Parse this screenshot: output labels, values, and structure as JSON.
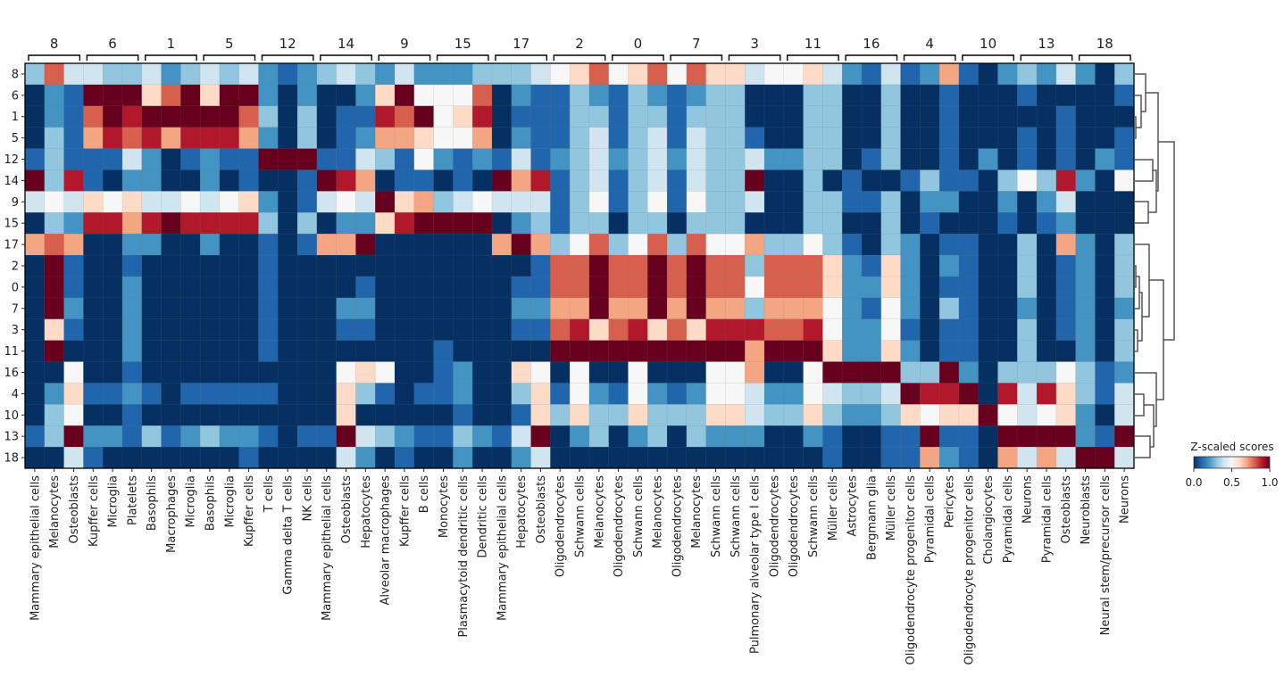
{
  "chart_data": {
    "type": "heatmap",
    "colormap": "RdBu_r",
    "value_range": [
      0,
      1
    ],
    "row_labels": [
      "8",
      "6",
      "1",
      "5",
      "12",
      "14",
      "9",
      "15",
      "17",
      "2",
      "0",
      "7",
      "3",
      "11",
      "16",
      "4",
      "10",
      "13",
      "18"
    ],
    "groups": [
      {
        "label": "8",
        "columns": [
          "Mammary epithelial cells",
          "Melanocytes",
          "Osteoblasts"
        ]
      },
      {
        "label": "6",
        "columns": [
          "Kupffer cells",
          "Microglia",
          "Platelets"
        ]
      },
      {
        "label": "1",
        "columns": [
          "Basophils",
          "Macrophages",
          "Microglia"
        ]
      },
      {
        "label": "5",
        "columns": [
          "Basophils",
          "Microglia",
          "Kupffer cells"
        ]
      },
      {
        "label": "12",
        "columns": [
          "T cells",
          "Gamma delta T cells",
          "NK cells"
        ]
      },
      {
        "label": "14",
        "columns": [
          "Mammary epithelial cells",
          "Osteoblasts",
          "Hepatocytes"
        ]
      },
      {
        "label": "9",
        "columns": [
          "Alveolar macrophages",
          "Kupffer cells",
          "B cells"
        ]
      },
      {
        "label": "15",
        "columns": [
          "Monocytes",
          "Plasmacytoid dendritic cells",
          "Dendritic cells"
        ]
      },
      {
        "label": "17",
        "columns": [
          "Mammary epithelial cells",
          "Hepatocytes",
          "Osteoblasts"
        ]
      },
      {
        "label": "2",
        "columns": [
          "Oligodendrocytes",
          "Schwann cells",
          "Melanocytes"
        ]
      },
      {
        "label": "0",
        "columns": [
          "Oligodendrocytes",
          "Schwann cells",
          "Melanocytes"
        ]
      },
      {
        "label": "7",
        "columns": [
          "Oligodendrocytes",
          "Melanocytes",
          "Schwann cells"
        ]
      },
      {
        "label": "3",
        "columns": [
          "Schwann cells",
          "Pulmonary alveolar type I cells",
          "Oligodendrocytes"
        ]
      },
      {
        "label": "11",
        "columns": [
          "Oligodendrocytes",
          "Schwann cells",
          "Müller cells"
        ]
      },
      {
        "label": "16",
        "columns": [
          "Astrocytes",
          "Bergmann glia",
          "Müller cells"
        ]
      },
      {
        "label": "4",
        "columns": [
          "Oligodendrocyte progenitor cells",
          "Pyramidal cells",
          "Pericytes"
        ]
      },
      {
        "label": "10",
        "columns": [
          "Oligodendrocyte progenitor cells",
          "Cholangiocytes",
          "Pyramidal cells"
        ]
      },
      {
        "label": "13",
        "columns": [
          "Neurons",
          "Pyramidal cells",
          "Osteoblasts"
        ]
      },
      {
        "label": "18",
        "columns": [
          "Neuroblasts",
          "Neural stem/precursor cells",
          "Neurons"
        ]
      }
    ],
    "values": [
      [
        0.3,
        0.8,
        0.4,
        0.4,
        0.3,
        0.3,
        0.4,
        0.2,
        0.3,
        0.4,
        0.3,
        0.4,
        0.2,
        0.1,
        0.2,
        0.3,
        0.4,
        0.3,
        0.2,
        0.4,
        0.2,
        0.2,
        0.2,
        0.3,
        0.3,
        0.3,
        0.4,
        0.5,
        0.6,
        0.8,
        0.5,
        0.6,
        0.8,
        0.5,
        0.8,
        0.6,
        0.6,
        0.4,
        0.5,
        0.5,
        0.6,
        0.4,
        0.2,
        0.1,
        0.4,
        0.1,
        0.2,
        0.7,
        0.1,
        0.0,
        0.2,
        0.3,
        0.2,
        0.4,
        0.2,
        0.0,
        0.3
      ],
      [
        0.0,
        0.2,
        0.1,
        1.0,
        1.0,
        1.0,
        0.6,
        0.8,
        1.0,
        0.6,
        1.0,
        1.0,
        0.2,
        0.0,
        0.2,
        0.0,
        0.0,
        0.2,
        0.6,
        1.0,
        0.5,
        0.5,
        0.5,
        0.8,
        0.0,
        0.2,
        0.1,
        0.1,
        0.3,
        0.2,
        0.1,
        0.3,
        0.2,
        0.1,
        0.2,
        0.3,
        0.3,
        0.0,
        0.0,
        0.0,
        0.3,
        0.3,
        0.0,
        0.0,
        0.3,
        0.0,
        0.0,
        0.1,
        0.0,
        0.0,
        0.0,
        0.1,
        0.0,
        0.0,
        0.0,
        0.0,
        0.1
      ],
      [
        0.0,
        0.2,
        0.1,
        0.8,
        1.0,
        0.9,
        1.0,
        1.0,
        1.0,
        1.0,
        1.0,
        0.8,
        0.3,
        0.0,
        0.3,
        0.0,
        0.1,
        0.1,
        0.9,
        0.8,
        1.0,
        0.5,
        0.6,
        0.9,
        0.0,
        0.1,
        0.1,
        0.1,
        0.3,
        0.3,
        0.1,
        0.3,
        0.3,
        0.1,
        0.3,
        0.3,
        0.3,
        0.0,
        0.0,
        0.0,
        0.3,
        0.3,
        0.0,
        0.0,
        0.3,
        0.0,
        0.0,
        0.1,
        0.0,
        0.0,
        0.0,
        0.0,
        0.0,
        0.1,
        0.0,
        0.0,
        0.0
      ],
      [
        0.0,
        0.3,
        0.1,
        0.7,
        0.9,
        0.8,
        0.9,
        0.7,
        0.9,
        0.9,
        0.9,
        0.7,
        0.2,
        0.0,
        0.3,
        0.0,
        0.1,
        0.2,
        0.7,
        0.7,
        0.6,
        0.5,
        0.5,
        0.7,
        0.0,
        0.2,
        0.1,
        0.1,
        0.3,
        0.4,
        0.1,
        0.3,
        0.4,
        0.1,
        0.4,
        0.3,
        0.3,
        0.1,
        0.0,
        0.0,
        0.3,
        0.3,
        0.0,
        0.0,
        0.3,
        0.0,
        0.0,
        0.1,
        0.0,
        0.0,
        0.0,
        0.1,
        0.0,
        0.1,
        0.0,
        0.0,
        0.1
      ],
      [
        0.1,
        0.3,
        0.1,
        0.1,
        0.1,
        0.4,
        0.2,
        0.0,
        0.1,
        0.2,
        0.1,
        0.1,
        1.0,
        1.0,
        1.0,
        0.1,
        0.1,
        0.4,
        0.3,
        0.1,
        0.5,
        0.2,
        0.1,
        0.2,
        0.1,
        0.4,
        0.1,
        0.2,
        0.3,
        0.4,
        0.2,
        0.3,
        0.4,
        0.2,
        0.4,
        0.3,
        0.3,
        0.4,
        0.2,
        0.2,
        0.3,
        0.3,
        0.0,
        0.1,
        0.3,
        0.0,
        0.0,
        0.1,
        0.0,
        0.2,
        0.0,
        0.1,
        0.0,
        0.1,
        0.0,
        0.2,
        0.1
      ],
      [
        1.0,
        0.3,
        0.9,
        0.1,
        0.0,
        0.2,
        0.2,
        0.0,
        0.0,
        0.2,
        0.0,
        0.1,
        0.0,
        0.0,
        0.1,
        1.0,
        0.9,
        0.7,
        0.0,
        0.1,
        0.1,
        0.0,
        0.1,
        0.0,
        1.0,
        0.7,
        0.9,
        0.1,
        0.3,
        0.4,
        0.1,
        0.3,
        0.4,
        0.1,
        0.4,
        0.3,
        0.3,
        1.0,
        0.0,
        0.0,
        0.3,
        0.0,
        0.1,
        0.0,
        0.0,
        0.1,
        0.3,
        0.1,
        0.1,
        0.0,
        0.3,
        0.5,
        0.3,
        0.9,
        0.2,
        0.0,
        0.5
      ],
      [
        0.4,
        0.5,
        0.4,
        0.6,
        0.5,
        0.6,
        0.4,
        0.4,
        0.5,
        0.4,
        0.5,
        0.6,
        0.2,
        0.0,
        0.1,
        0.4,
        0.5,
        0.4,
        1.0,
        0.6,
        0.7,
        0.3,
        0.4,
        0.5,
        0.4,
        0.4,
        0.4,
        0.1,
        0.3,
        0.5,
        0.1,
        0.3,
        0.5,
        0.1,
        0.5,
        0.3,
        0.3,
        0.4,
        0.0,
        0.0,
        0.3,
        0.3,
        0.1,
        0.1,
        0.3,
        0.0,
        0.2,
        0.2,
        0.0,
        0.0,
        0.2,
        0.0,
        0.2,
        0.4,
        0.0,
        0.0,
        0.0
      ],
      [
        0.0,
        0.3,
        0.2,
        0.9,
        0.9,
        0.7,
        0.9,
        1.0,
        0.9,
        0.9,
        0.9,
        0.9,
        0.3,
        0.0,
        0.3,
        0.0,
        0.2,
        0.2,
        0.6,
        0.9,
        1.0,
        1.0,
        1.0,
        1.0,
        0.0,
        0.2,
        0.3,
        0.1,
        0.3,
        0.3,
        0.0,
        0.3,
        0.3,
        0.0,
        0.3,
        0.3,
        0.3,
        0.0,
        0.0,
        0.0,
        0.3,
        0.3,
        0.0,
        0.0,
        0.3,
        0.0,
        0.1,
        0.0,
        0.0,
        0.0,
        0.1,
        0.0,
        0.1,
        0.2,
        0.0,
        0.0,
        0.0
      ],
      [
        0.7,
        0.8,
        0.7,
        0.0,
        0.0,
        0.2,
        0.2,
        0.0,
        0.0,
        0.2,
        0.0,
        0.0,
        0.1,
        0.0,
        0.1,
        0.7,
        0.7,
        1.0,
        0.0,
        0.0,
        0.0,
        0.0,
        0.0,
        0.0,
        0.7,
        1.0,
        0.7,
        0.3,
        0.5,
        0.8,
        0.3,
        0.5,
        0.8,
        0.3,
        0.8,
        0.5,
        0.5,
        0.7,
        0.3,
        0.3,
        0.5,
        0.3,
        0.1,
        0.0,
        0.3,
        0.2,
        0.0,
        0.1,
        0.1,
        0.0,
        0.0,
        0.3,
        0.0,
        0.7,
        0.2,
        0.0,
        0.3
      ],
      [
        0.0,
        1.0,
        0.1,
        0.0,
        0.0,
        0.1,
        0.0,
        0.0,
        0.0,
        0.0,
        0.0,
        0.0,
        0.1,
        0.0,
        0.0,
        0.0,
        0.0,
        0.0,
        0.0,
        0.0,
        0.0,
        0.0,
        0.0,
        0.0,
        0.0,
        0.0,
        0.1,
        0.8,
        0.8,
        1.0,
        0.8,
        0.8,
        1.0,
        0.8,
        1.0,
        0.8,
        0.8,
        0.3,
        0.8,
        0.8,
        0.8,
        0.6,
        0.2,
        0.1,
        0.6,
        0.2,
        0.0,
        0.2,
        0.1,
        0.0,
        0.0,
        0.3,
        0.0,
        0.1,
        0.2,
        0.0,
        0.3
      ],
      [
        0.0,
        1.0,
        0.1,
        0.0,
        0.0,
        0.2,
        0.0,
        0.0,
        0.0,
        0.0,
        0.0,
        0.0,
        0.1,
        0.0,
        0.0,
        0.0,
        0.0,
        0.1,
        0.0,
        0.0,
        0.0,
        0.0,
        0.0,
        0.0,
        0.0,
        0.1,
        0.1,
        0.8,
        0.8,
        1.0,
        0.8,
        0.8,
        1.0,
        0.8,
        1.0,
        0.8,
        0.8,
        0.5,
        0.8,
        0.8,
        0.8,
        0.6,
        0.2,
        0.2,
        0.6,
        0.2,
        0.0,
        0.1,
        0.1,
        0.0,
        0.0,
        0.3,
        0.0,
        0.1,
        0.2,
        0.0,
        0.3
      ],
      [
        0.0,
        1.0,
        0.2,
        0.0,
        0.0,
        0.2,
        0.0,
        0.0,
        0.0,
        0.0,
        0.0,
        0.0,
        0.1,
        0.0,
        0.0,
        0.0,
        0.2,
        0.2,
        0.0,
        0.0,
        0.0,
        0.0,
        0.0,
        0.0,
        0.0,
        0.2,
        0.2,
        0.7,
        0.7,
        1.0,
        0.7,
        0.7,
        1.0,
        0.7,
        1.0,
        0.7,
        0.7,
        0.3,
        0.7,
        0.7,
        0.7,
        0.5,
        0.2,
        0.1,
        0.5,
        0.2,
        0.0,
        0.3,
        0.1,
        0.0,
        0.0,
        0.2,
        0.0,
        0.1,
        0.2,
        0.0,
        0.2
      ],
      [
        0.0,
        0.6,
        0.1,
        0.0,
        0.0,
        0.2,
        0.0,
        0.0,
        0.0,
        0.0,
        0.0,
        0.0,
        0.1,
        0.0,
        0.0,
        0.0,
        0.1,
        0.1,
        0.0,
        0.0,
        0.0,
        0.0,
        0.0,
        0.0,
        0.0,
        0.1,
        0.1,
        0.8,
        0.9,
        0.6,
        0.8,
        0.9,
        0.6,
        0.8,
        0.6,
        0.9,
        0.9,
        0.9,
        0.8,
        0.8,
        0.9,
        0.5,
        0.2,
        0.2,
        0.5,
        0.1,
        0.0,
        0.1,
        0.1,
        0.0,
        0.0,
        0.3,
        0.0,
        0.1,
        0.2,
        0.0,
        0.3
      ],
      [
        0.0,
        1.0,
        0.0,
        0.0,
        0.0,
        0.2,
        0.0,
        0.0,
        0.0,
        0.0,
        0.0,
        0.0,
        0.1,
        0.0,
        0.0,
        0.0,
        0.0,
        0.0,
        0.0,
        0.0,
        0.0,
        0.1,
        0.0,
        0.0,
        0.0,
        0.0,
        0.0,
        1.0,
        1.0,
        1.0,
        1.0,
        1.0,
        1.0,
        1.0,
        1.0,
        1.0,
        1.0,
        0.7,
        1.0,
        1.0,
        1.0,
        0.6,
        0.2,
        0.2,
        0.6,
        0.2,
        0.0,
        0.1,
        0.1,
        0.0,
        0.0,
        0.3,
        0.0,
        0.0,
        0.2,
        0.0,
        0.3
      ],
      [
        0.0,
        0.0,
        0.5,
        0.0,
        0.0,
        0.1,
        0.0,
        0.0,
        0.0,
        0.0,
        0.0,
        0.0,
        0.0,
        0.0,
        0.0,
        0.0,
        0.5,
        0.6,
        0.5,
        0.0,
        0.0,
        0.1,
        0.2,
        0.0,
        0.0,
        0.6,
        0.5,
        0.0,
        0.5,
        0.0,
        0.0,
        0.5,
        0.0,
        0.0,
        0.0,
        0.5,
        0.5,
        0.7,
        0.0,
        0.0,
        0.5,
        1.0,
        1.0,
        1.0,
        1.0,
        0.3,
        0.3,
        1.0,
        0.2,
        0.0,
        0.3,
        0.3,
        0.3,
        0.5,
        0.3,
        0.1,
        0.2
      ],
      [
        0.0,
        0.2,
        0.6,
        0.1,
        0.1,
        0.2,
        0.1,
        0.0,
        0.1,
        0.1,
        0.1,
        0.1,
        0.1,
        0.0,
        0.0,
        0.0,
        0.6,
        0.3,
        0.1,
        0.0,
        0.1,
        0.1,
        0.2,
        0.0,
        0.0,
        0.3,
        0.6,
        0.1,
        0.5,
        0.2,
        0.1,
        0.5,
        0.2,
        0.1,
        0.2,
        0.5,
        0.5,
        0.4,
        0.2,
        0.2,
        0.5,
        0.4,
        0.3,
        0.3,
        0.4,
        1.0,
        0.9,
        0.9,
        1.0,
        0.0,
        0.9,
        0.4,
        0.9,
        0.6,
        0.3,
        0.1,
        0.4
      ],
      [
        0.0,
        0.3,
        0.5,
        0.0,
        0.0,
        0.1,
        0.0,
        0.0,
        0.0,
        0.0,
        0.0,
        0.0,
        0.0,
        0.0,
        0.0,
        0.0,
        0.6,
        0.0,
        0.0,
        0.0,
        0.0,
        0.0,
        0.1,
        0.0,
        0.0,
        0.1,
        0.6,
        0.3,
        0.6,
        0.3,
        0.3,
        0.6,
        0.3,
        0.3,
        0.3,
        0.6,
        0.6,
        0.4,
        0.3,
        0.3,
        0.6,
        0.3,
        0.2,
        0.2,
        0.3,
        0.6,
        0.5,
        0.6,
        0.6,
        1.0,
        0.5,
        0.4,
        0.5,
        0.6,
        0.2,
        0.0,
        0.4
      ],
      [
        0.1,
        0.3,
        1.0,
        0.2,
        0.2,
        0.1,
        0.3,
        0.1,
        0.2,
        0.3,
        0.2,
        0.2,
        0.1,
        0.0,
        0.1,
        0.1,
        1.0,
        0.4,
        0.3,
        0.2,
        0.1,
        0.1,
        0.3,
        0.2,
        0.1,
        0.4,
        1.0,
        0.0,
        0.2,
        0.3,
        0.0,
        0.2,
        0.3,
        0.0,
        0.3,
        0.2,
        0.2,
        0.2,
        0.0,
        0.0,
        0.2,
        0.1,
        0.0,
        0.0,
        0.1,
        0.1,
        1.0,
        0.1,
        0.1,
        0.0,
        1.0,
        1.0,
        1.0,
        1.0,
        0.2,
        0.1,
        1.0
      ],
      [
        0.0,
        0.0,
        0.4,
        0.1,
        0.0,
        0.0,
        0.0,
        0.0,
        0.0,
        0.0,
        0.0,
        0.1,
        0.0,
        0.0,
        0.0,
        0.0,
        0.4,
        0.2,
        0.0,
        0.1,
        0.0,
        0.0,
        0.2,
        0.0,
        0.0,
        0.2,
        0.4,
        0.0,
        0.0,
        0.0,
        0.0,
        0.0,
        0.0,
        0.0,
        0.0,
        0.0,
        0.0,
        0.0,
        0.0,
        0.0,
        0.0,
        0.1,
        0.0,
        0.0,
        0.1,
        0.1,
        0.7,
        0.2,
        0.1,
        0.0,
        0.7,
        0.4,
        0.7,
        0.4,
        1.0,
        1.0,
        0.4
      ]
    ],
    "colorbar": {
      "title": "Z-scaled scores",
      "ticks": [
        "0.0",
        "0.5",
        "1.0"
      ]
    },
    "dendrogram": "rows",
    "grid": false
  }
}
